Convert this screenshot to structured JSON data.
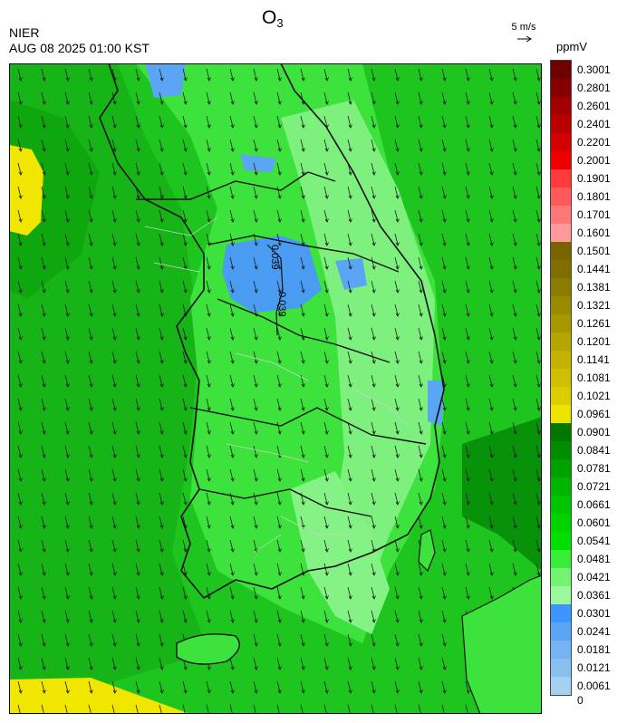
{
  "header": {
    "org": "NIER",
    "timestamp": "AUG 08 2025 01:00 KST",
    "title_main": "O",
    "title_sub": "3",
    "wind_reference": "5 m/s",
    "unit": "ppmV"
  },
  "contour_labels": [
    "0.039",
    "0.039"
  ],
  "legend": {
    "levels": [
      "0.3001",
      "0.2801",
      "0.2601",
      "0.2401",
      "0.2201",
      "0.2001",
      "0.1901",
      "0.1801",
      "0.1701",
      "0.1601",
      "0.1501",
      "0.1441",
      "0.1381",
      "0.1321",
      "0.1261",
      "0.1201",
      "0.1141",
      "0.1081",
      "0.1021",
      "0.0961",
      "0.0901",
      "0.0841",
      "0.0781",
      "0.0721",
      "0.0661",
      "0.0601",
      "0.0541",
      "0.0481",
      "0.0421",
      "0.0361",
      "0.0301",
      "0.0241",
      "0.0181",
      "0.0121",
      "0.0061",
      "0"
    ],
    "colors": [
      "#6e0000",
      "#850000",
      "#a00000",
      "#b80000",
      "#d20000",
      "#ee0000",
      "#ff3a3a",
      "#ff5a5a",
      "#ff7878",
      "#ff9a9a",
      "#7a6400",
      "#7f6e00",
      "#8a7c00",
      "#998a00",
      "#a89800",
      "#b5a500",
      "#c3b200",
      "#cfbf00",
      "#dccc00",
      "#ece300",
      "#007800",
      "#008c00",
      "#00a000",
      "#00b400",
      "#00c400",
      "#00d200",
      "#00e000",
      "#38ec38",
      "#72f472",
      "#9cf89c",
      "#3b96ff",
      "#5aa6f4",
      "#74b4f2",
      "#8ac0ef",
      "#a6d0ef"
    ]
  }
}
